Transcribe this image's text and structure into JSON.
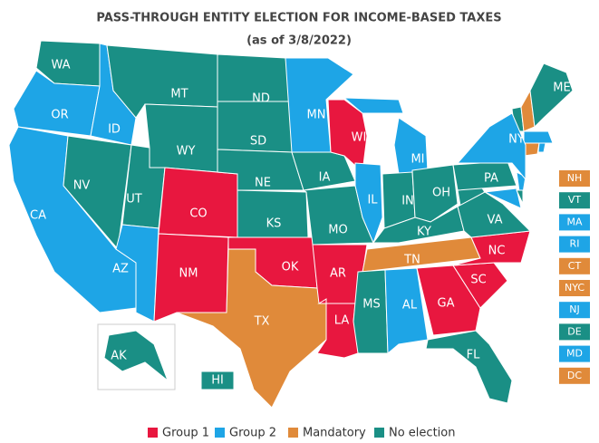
{
  "header": {
    "title": "PASS-THROUGH ENTITY ELECTION FOR INCOME-BASED TAXES",
    "subtitle": "(as of 3/8/2022)"
  },
  "legend": [
    {
      "label": "Group 1",
      "color": "#e8173f"
    },
    {
      "label": "Group 2",
      "color": "#1ea5e6"
    },
    {
      "label": "Mandatory",
      "color": "#e08a3a"
    },
    {
      "label": "No election",
      "color": "#1a8f85"
    }
  ],
  "states": [
    {
      "label": "WA",
      "group": 3
    },
    {
      "label": "OR",
      "group": 1
    },
    {
      "label": "CA",
      "group": 1
    },
    {
      "label": "ID",
      "group": 1
    },
    {
      "label": "NV",
      "group": 3
    },
    {
      "label": "UT",
      "group": 3
    },
    {
      "label": "AZ",
      "group": 1
    },
    {
      "label": "MT",
      "group": 3
    },
    {
      "label": "WY",
      "group": 3
    },
    {
      "label": "CO",
      "group": 0
    },
    {
      "label": "NM",
      "group": 0
    },
    {
      "label": "ND",
      "group": 3
    },
    {
      "label": "SD",
      "group": 3
    },
    {
      "label": "NE",
      "group": 3
    },
    {
      "label": "KS",
      "group": 3
    },
    {
      "label": "OK",
      "group": 0
    },
    {
      "label": "TX",
      "group": 2
    },
    {
      "label": "MN",
      "group": 1
    },
    {
      "label": "IA",
      "group": 3
    },
    {
      "label": "WI",
      "group": 0
    },
    {
      "label": "MO",
      "group": 3
    },
    {
      "label": "AR",
      "group": 0
    },
    {
      "label": "LA",
      "group": 0
    },
    {
      "label": "IL",
      "group": 1
    },
    {
      "label": "MI",
      "group": 1
    },
    {
      "label": "IN",
      "group": 3
    },
    {
      "label": "OH",
      "group": 3
    },
    {
      "label": "KY",
      "group": 3
    },
    {
      "label": "TN",
      "group": 2
    },
    {
      "label": "MS",
      "group": 3
    },
    {
      "label": "AL",
      "group": 1
    },
    {
      "label": "GA",
      "group": 0
    },
    {
      "label": "FL",
      "group": 3
    },
    {
      "label": "SC",
      "group": 0
    },
    {
      "label": "NC",
      "group": 0
    },
    {
      "label": "VA",
      "group": 3
    },
    {
      "label": "PA",
      "group": 3
    },
    {
      "label": "NY",
      "group": 1
    },
    {
      "label": "ME",
      "group": 3
    },
    {
      "label": "AK",
      "group": 3
    },
    {
      "label": "HI",
      "group": 3
    }
  ],
  "small_states": [
    {
      "label": "NH",
      "group": 2
    },
    {
      "label": "VT",
      "group": 3
    },
    {
      "label": "MA",
      "group": 1
    },
    {
      "label": "RI",
      "group": 1
    },
    {
      "label": "CT",
      "group": 2
    },
    {
      "label": "NYC",
      "group": 2
    },
    {
      "label": "NJ",
      "group": 1
    },
    {
      "label": "DE",
      "group": 3
    },
    {
      "label": "MD",
      "group": 1
    },
    {
      "label": "DC",
      "group": 2
    }
  ]
}
